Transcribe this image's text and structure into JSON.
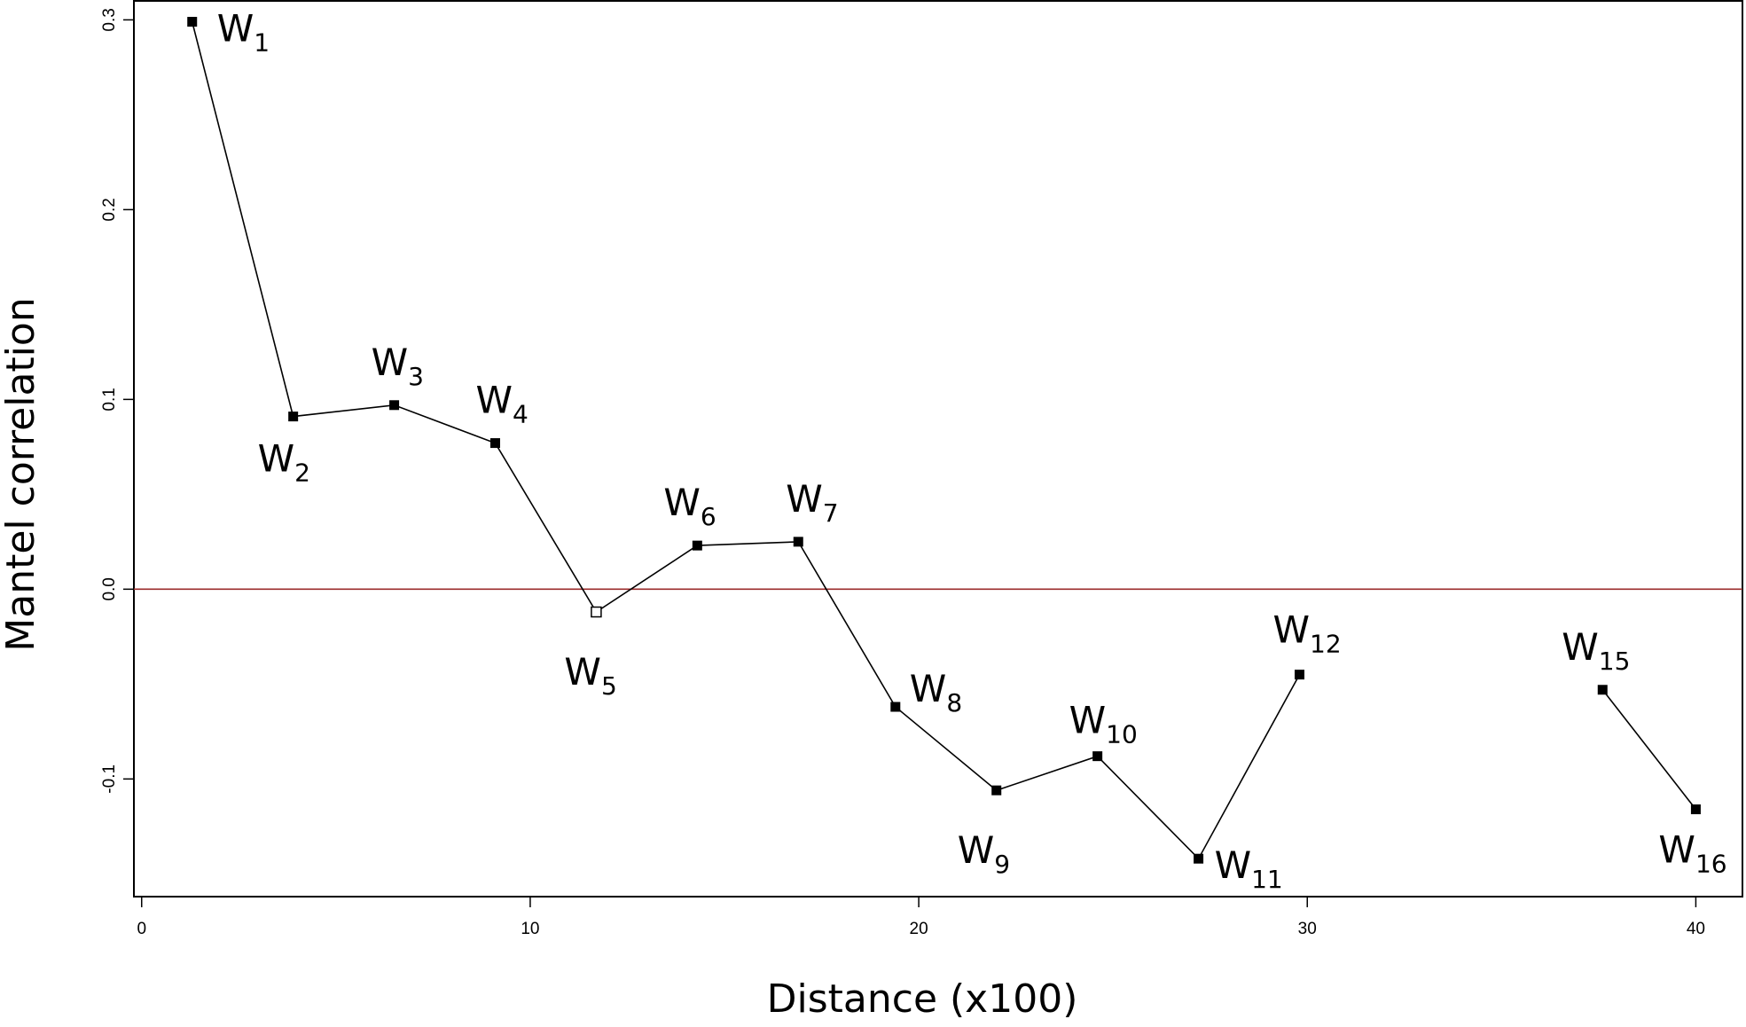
{
  "chart_data": {
    "type": "line",
    "xlabel": "Distance (x100)",
    "ylabel": "Mantel correlation",
    "xlim": [
      -0.2,
      41.2
    ],
    "ylim": [
      -0.162,
      0.31
    ],
    "xticks": [
      0,
      10,
      20,
      30,
      40
    ],
    "xtick_labels": [
      "0",
      "10",
      "20",
      "30",
      "40"
    ],
    "yticks": [
      -0.1,
      0.0,
      0.1,
      0.2,
      0.3
    ],
    "ytick_labels": [
      "-0.1",
      "0.0",
      "0.1",
      "0.2",
      "0.3"
    ],
    "reference_line": {
      "y": 0.0,
      "color": "#9b2b2b"
    },
    "grid": false,
    "line_color": "#000000",
    "points": [
      {
        "label": "W",
        "sub": "1",
        "x": 1.3,
        "y": 0.299,
        "filled": true,
        "segment": 0
      },
      {
        "label": "W",
        "sub": "2",
        "x": 3.9,
        "y": 0.091,
        "filled": true,
        "segment": 0
      },
      {
        "label": "W",
        "sub": "3",
        "x": 6.5,
        "y": 0.097,
        "filled": true,
        "segment": 0
      },
      {
        "label": "W",
        "sub": "4",
        "x": 9.1,
        "y": 0.077,
        "filled": true,
        "segment": 0
      },
      {
        "label": "W",
        "sub": "5",
        "x": 11.7,
        "y": -0.012,
        "filled": false,
        "segment": 0
      },
      {
        "label": "W",
        "sub": "6",
        "x": 14.3,
        "y": 0.023,
        "filled": true,
        "segment": 0
      },
      {
        "label": "W",
        "sub": "7",
        "x": 16.9,
        "y": 0.025,
        "filled": true,
        "segment": 0
      },
      {
        "label": "W",
        "sub": "8",
        "x": 19.4,
        "y": -0.062,
        "filled": true,
        "segment": 0
      },
      {
        "label": "W",
        "sub": "9",
        "x": 22.0,
        "y": -0.106,
        "filled": true,
        "segment": 0
      },
      {
        "label": "W",
        "sub": "10",
        "x": 24.6,
        "y": -0.088,
        "filled": true,
        "segment": 0
      },
      {
        "label": "W",
        "sub": "11",
        "x": 27.2,
        "y": -0.142,
        "filled": true,
        "segment": 0
      },
      {
        "label": "W",
        "sub": "12",
        "x": 29.8,
        "y": -0.045,
        "filled": true,
        "segment": 0
      },
      {
        "label": "W",
        "sub": "15",
        "x": 37.6,
        "y": -0.053,
        "filled": true,
        "segment": 1
      },
      {
        "label": "W",
        "sub": "16",
        "x": 40.0,
        "y": -0.116,
        "filled": true,
        "segment": 1
      }
    ]
  }
}
